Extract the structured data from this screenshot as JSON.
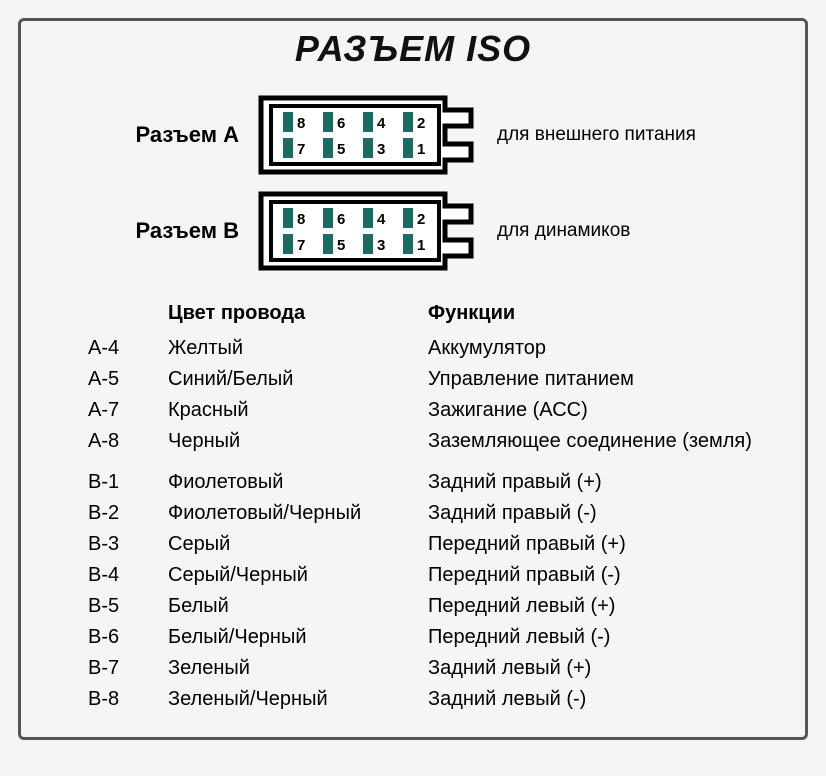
{
  "title": "РАЗЪЕМ ISO",
  "connectors": [
    {
      "label": "Разъем А",
      "desc": "для внешнего питания",
      "pins_top": [
        "8",
        "6",
        "4",
        "2"
      ],
      "pins_bot": [
        "7",
        "5",
        "3",
        "1"
      ]
    },
    {
      "label": "Разъем В",
      "desc": "для динамиков",
      "pins_top": [
        "8",
        "6",
        "4",
        "2"
      ],
      "pins_bot": [
        "7",
        "5",
        "3",
        "1"
      ]
    }
  ],
  "table": {
    "headers": {
      "color": "Цвет провода",
      "func": "Функции"
    },
    "groups": [
      [
        {
          "pin": "A-4",
          "color": "Желтый",
          "func": "Аккумулятор"
        },
        {
          "pin": "A-5",
          "color": "Синий/Белый",
          "func": "Управление питанием"
        },
        {
          "pin": "A-7",
          "color": "Красный",
          "func": "Зажигание (АСС)"
        },
        {
          "pin": "A-8",
          "color": "Черный",
          "func": "Заземляющее соединение (земля)"
        }
      ],
      [
        {
          "pin": "B-1",
          "color": "Фиолетовый",
          "func": "Задний правый (+)"
        },
        {
          "pin": "B-2",
          "color": "Фиолетовый/Черный",
          "func": "Задний правый (-)"
        },
        {
          "pin": "B-3",
          "color": "Серый",
          "func": "Передний правый (+)"
        },
        {
          "pin": "B-4",
          "color": "Серый/Черный",
          "func": "Передний правый (-)"
        },
        {
          "pin": "B-5",
          "color": "Белый",
          "func": "Передний левый (+)"
        },
        {
          "pin": "B-6",
          "color": "Белый/Черный",
          "func": "Передний левый (-)"
        },
        {
          "pin": "B-7",
          "color": "Зеленый",
          "func": "Задний левый (+)"
        },
        {
          "pin": "B-8",
          "color": "Зеленый/Черный",
          "func": "Задний левый (-)"
        }
      ]
    ]
  },
  "style": {
    "pin_fill": "#1b6b63",
    "outline": "#000000",
    "bg": "#f5f5f3",
    "pin_font": 15,
    "label_font": 22,
    "desc_font": 19,
    "title_font": 36,
    "body_font": 20
  }
}
